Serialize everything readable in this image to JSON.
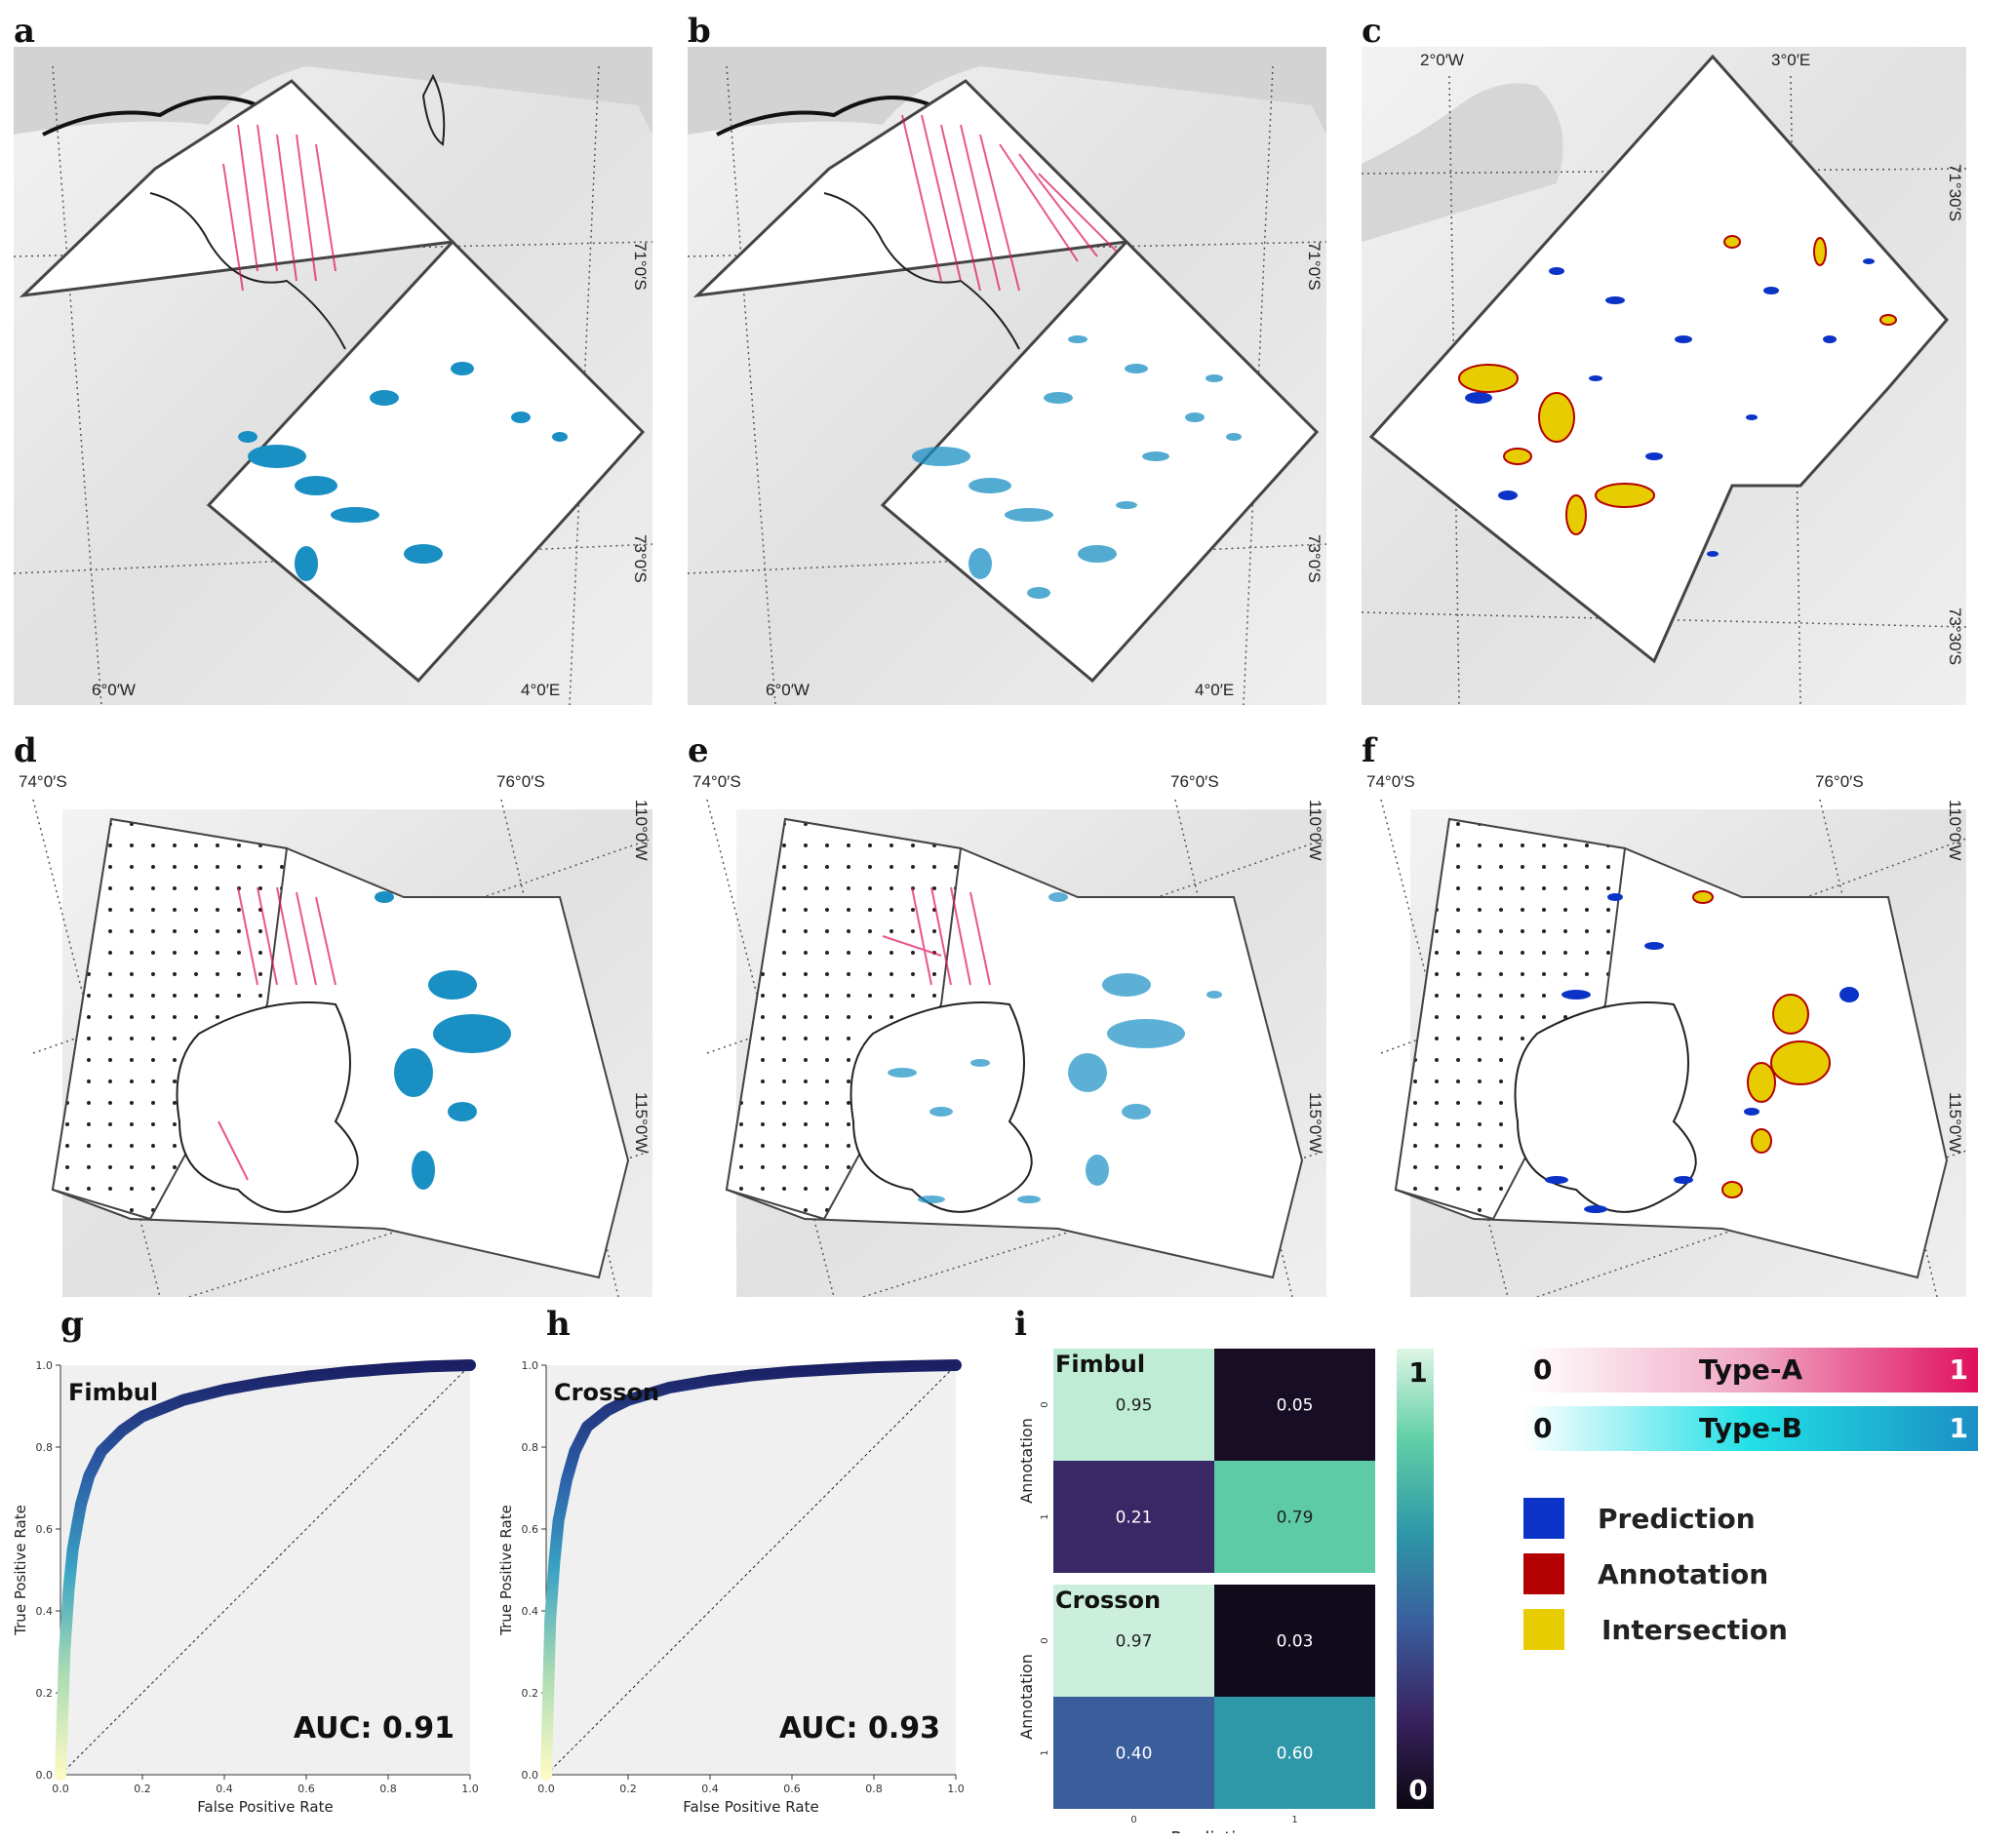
{
  "panels": {
    "a": {
      "label": "a",
      "lon_labels": [
        "6°0′W",
        "4°0′E"
      ],
      "lat_labels": [
        "71°0′S",
        "73°0′S"
      ]
    },
    "b": {
      "label": "b",
      "lon_labels": [
        "6°0′W",
        "4°0′E"
      ],
      "lat_labels": [
        "71°0′S",
        "73°0′S"
      ]
    },
    "c": {
      "label": "c",
      "lon_labels": [
        "2°0′W",
        "3°0′E"
      ],
      "lat_labels": [
        "71°30′S",
        "73°30′S"
      ]
    },
    "d": {
      "label": "d",
      "lat_labels": [
        "74°0′S",
        "76°0′S"
      ],
      "lon_labels": [
        "110°0′W",
        "115°0′W"
      ]
    },
    "e": {
      "label": "e",
      "lat_labels": [
        "74°0′S",
        "76°0′S"
      ],
      "lon_labels": [
        "110°0′W",
        "115°0′W"
      ]
    },
    "f": {
      "label": "f",
      "lat_labels": [
        "74°0′S",
        "76°0′S"
      ],
      "lon_labels": [
        "110°0′W",
        "115°0′W"
      ]
    },
    "g": {
      "label": "g"
    },
    "h": {
      "label": "h"
    },
    "i": {
      "label": "i"
    }
  },
  "colors": {
    "type_a": "#e0115f",
    "type_b": "#1a8fc4",
    "prediction": "#0b33c7",
    "annotation": "#b30000",
    "intersection": "#e6cc00",
    "outline": "#444444"
  },
  "chart_data": [
    {
      "type": "line",
      "title": "Fimbul",
      "xlabel": "False Positive Rate",
      "ylabel": "True Positive Rate",
      "xlim": [
        0,
        1
      ],
      "ylim": [
        0,
        1
      ],
      "xticks": [
        "0.0",
        "0.2",
        "0.4",
        "0.6",
        "0.8",
        "1.0"
      ],
      "yticks": [
        "0.0",
        "0.2",
        "0.4",
        "0.6",
        "0.8",
        "1.0"
      ],
      "annotation": "AUC: 0.91",
      "x": [
        0,
        0.005,
        0.01,
        0.02,
        0.03,
        0.05,
        0.07,
        0.1,
        0.15,
        0.2,
        0.3,
        0.4,
        0.5,
        0.6,
        0.7,
        0.8,
        0.9,
        1.0
      ],
      "y": [
        0,
        0.15,
        0.3,
        0.45,
        0.55,
        0.66,
        0.73,
        0.79,
        0.84,
        0.875,
        0.915,
        0.94,
        0.958,
        0.972,
        0.983,
        0.991,
        0.997,
        1.0
      ]
    },
    {
      "type": "line",
      "title": "Crosson",
      "xlabel": "False Positive Rate",
      "ylabel": "True Positive Rate",
      "xlim": [
        0,
        1
      ],
      "ylim": [
        0,
        1
      ],
      "xticks": [
        "0.0",
        "0.2",
        "0.4",
        "0.6",
        "0.8",
        "1.0"
      ],
      "yticks": [
        "0.0",
        "0.2",
        "0.4",
        "0.6",
        "0.8",
        "1.0"
      ],
      "annotation": "AUC: 0.93",
      "x": [
        0,
        0.005,
        0.01,
        0.02,
        0.03,
        0.05,
        0.07,
        0.1,
        0.15,
        0.2,
        0.3,
        0.4,
        0.5,
        0.6,
        0.7,
        0.8,
        0.9,
        1.0
      ],
      "y": [
        0,
        0.2,
        0.38,
        0.52,
        0.62,
        0.72,
        0.79,
        0.85,
        0.89,
        0.915,
        0.945,
        0.962,
        0.975,
        0.984,
        0.99,
        0.995,
        0.998,
        1.0
      ]
    },
    {
      "type": "heatmap",
      "xlabel": "Prediction",
      "ylabel": "Annotation",
      "x_ticks": [
        "0",
        "1"
      ],
      "y_ticks": [
        "0",
        "1"
      ],
      "colorbar_ticks": [
        "1",
        "0"
      ],
      "matrices": [
        {
          "name": "Fimbul",
          "values": [
            [
              0.95,
              0.05
            ],
            [
              0.21,
              0.79
            ]
          ],
          "labels": [
            [
              "0.95",
              "0.05"
            ],
            [
              "0.21",
              "0.79"
            ]
          ]
        },
        {
          "name": "Crosson",
          "values": [
            [
              0.97,
              0.03
            ],
            [
              0.4,
              0.6
            ]
          ],
          "labels": [
            [
              "0.97",
              "0.03"
            ],
            [
              "0.40",
              "0.60"
            ]
          ]
        }
      ]
    }
  ],
  "legend": {
    "type_a": {
      "label": "Type-A",
      "min": "0",
      "max": "1"
    },
    "type_b": {
      "label": "Type-B",
      "min": "0",
      "max": "1"
    },
    "items": [
      {
        "label": "Prediction",
        "color": "#0b33c7"
      },
      {
        "label": "Annotation",
        "color": "#b30000"
      },
      {
        "label": "Intersection",
        "color": "#e6cc00"
      }
    ]
  }
}
